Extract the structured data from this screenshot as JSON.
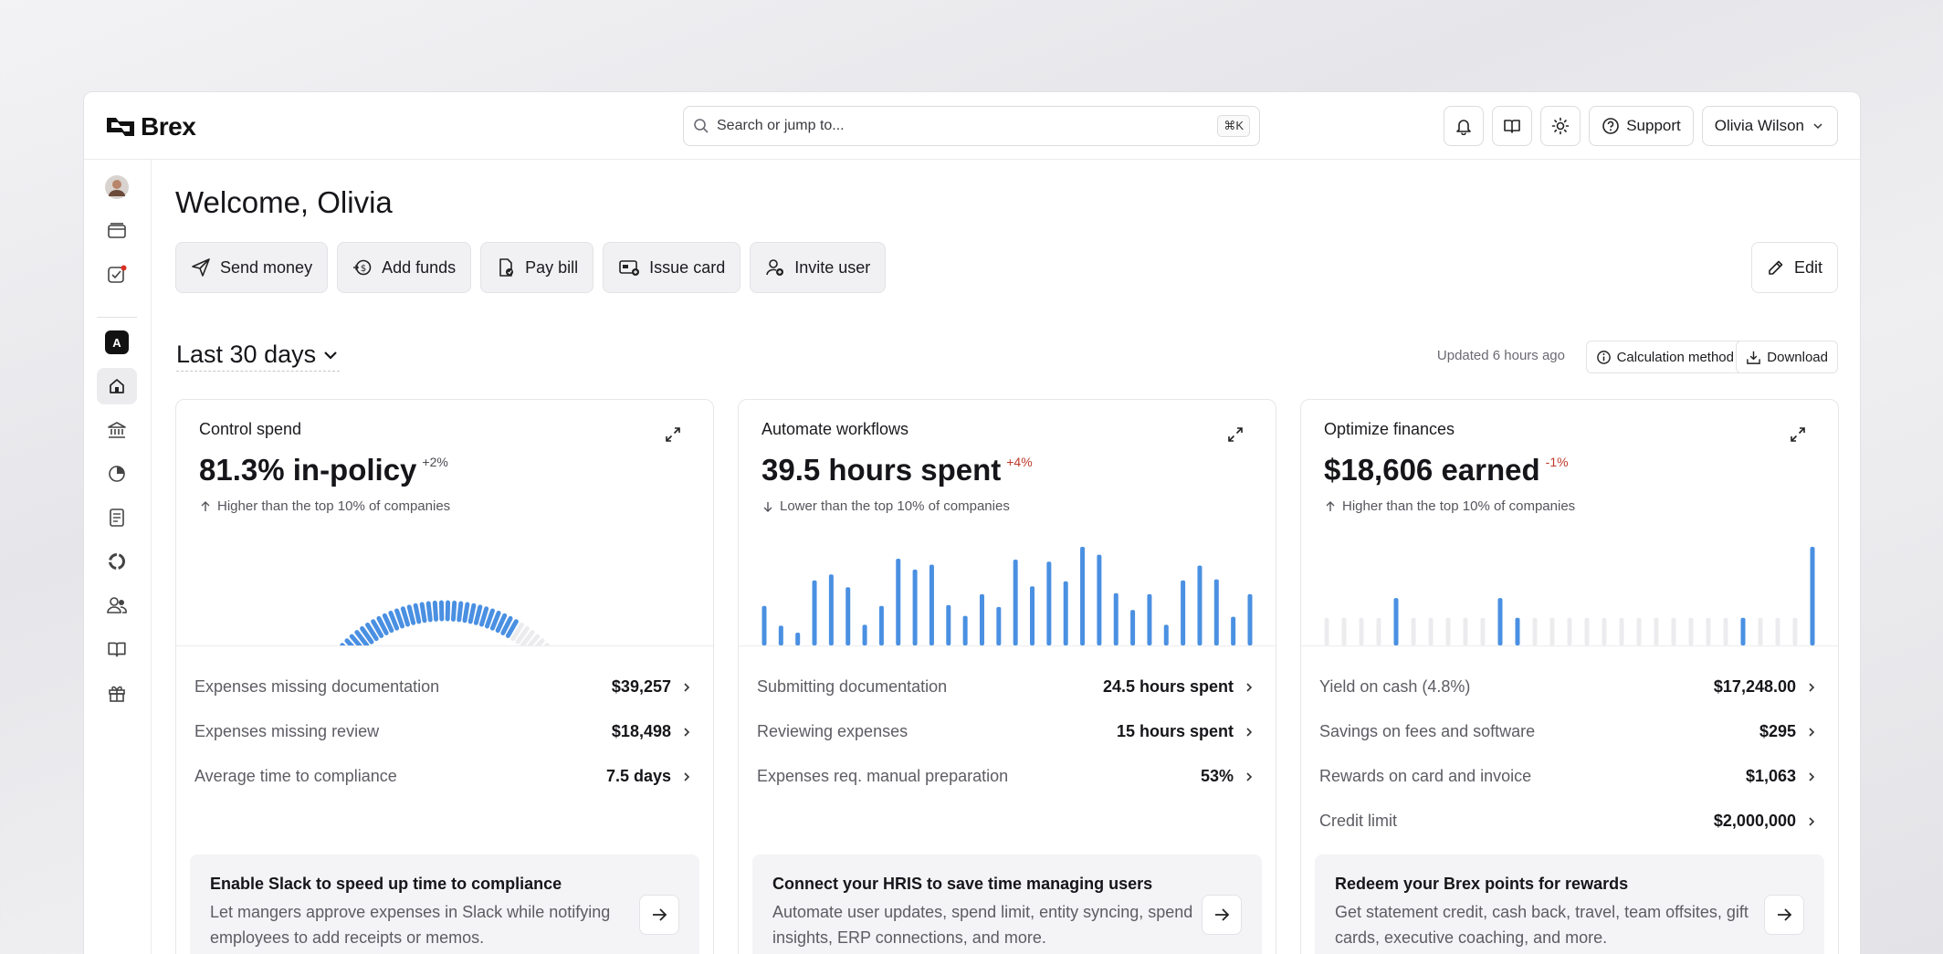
{
  "header": {
    "logo_text": "Brex",
    "search_placeholder": "Search or jump to...",
    "search_shortcut": "⌘K",
    "support_label": "Support",
    "user_name": "Olivia Wilson"
  },
  "sidebar": {
    "workspace_badge": "A",
    "items": [
      "avatar",
      "cards-icon",
      "tasks-icon",
      "workspace-icon",
      "home-icon",
      "bank-icon",
      "budget-icon",
      "bill-icon",
      "integrations-icon",
      "team-icon",
      "book-icon",
      "gift-icon"
    ]
  },
  "main": {
    "welcome": "Welcome, Olivia",
    "actions": [
      "Send money",
      "Add funds",
      "Pay bill",
      "Issue card",
      "Invite user"
    ],
    "edit_label": "Edit",
    "period": "Last 30 days",
    "updated": "Updated 6 hours ago",
    "calc_label": "Calculation method",
    "download_label": "Download"
  },
  "cards": [
    {
      "title": "Control spend",
      "metric": "81.3% in-policy",
      "delta": "+2%",
      "delta_color": "#4a4a52",
      "compare": "Higher than the top 10% of companies",
      "direction": "up",
      "rows": [
        {
          "label": "Expenses missing documentation",
          "value": "$39,257"
        },
        {
          "label": "Expenses missing review",
          "value": "$18,498"
        },
        {
          "label": "Average time to compliance",
          "value": "7.5 days"
        }
      ],
      "promo_title": "Enable Slack to speed up time to compliance",
      "promo_text": "Let mangers approve expenses in Slack while notifying employees to add receipts or memos."
    },
    {
      "title": "Automate workflows",
      "metric": "39.5 hours spent",
      "delta": "+4%",
      "delta_color": "#c0392b",
      "compare": "Lower than the top 10% of companies",
      "direction": "down",
      "rows": [
        {
          "label": "Submitting documentation",
          "value": "24.5 hours spent"
        },
        {
          "label": "Reviewing expenses",
          "value": "15 hours spent"
        },
        {
          "label": "Expenses req. manual preparation",
          "value": "53%"
        }
      ],
      "promo_title": "Connect your HRIS to save time managing users",
      "promo_text": "Automate user updates, spend limit, entity syncing, spend insights, ERP connections, and more."
    },
    {
      "title": "Optimize finances",
      "metric": "$18,606 earned",
      "delta": "-1%",
      "delta_color": "#c0392b",
      "compare": "Higher than the top 10% of companies",
      "direction": "up",
      "rows": [
        {
          "label": "Yield on cash (4.8%)",
          "value": "$17,248.00"
        },
        {
          "label": "Savings on fees and software",
          "value": "$295"
        },
        {
          "label": "Rewards on card and invoice",
          "value": "$1,063"
        },
        {
          "label": "Credit limit",
          "value": "$2,000,000"
        }
      ],
      "promo_title": "Redeem your Brex points for rewards",
      "promo_text": "Get statement credit, cash back, travel, team offsites, gift cards, executive coaching, and more."
    }
  ],
  "charts": {
    "accent": "#4a90e2",
    "muted": "#ececef",
    "gauge_fraction": 0.813,
    "workflow_bars": [
      0.4,
      0.2,
      0.13,
      0.66,
      0.72,
      0.59,
      0.21,
      0.4,
      0.88,
      0.77,
      0.82,
      0.41,
      0.3,
      0.52,
      0.39,
      0.87,
      0.6,
      0.85,
      0.65,
      1.0,
      0.92,
      0.53,
      0.36,
      0.52,
      0.21,
      0.66,
      0.81,
      0.67,
      0.29,
      0.52
    ],
    "finance_bars": [
      0.28,
      0.28,
      0.28,
      0.28,
      0.48,
      0.28,
      0.28,
      0.28,
      0.28,
      0.28,
      0.48,
      0.28,
      0.28,
      0.28,
      0.28,
      0.28,
      0.28,
      0.28,
      0.28,
      0.28,
      0.28,
      0.28,
      0.28,
      0.28,
      0.28,
      0.28,
      0.28,
      0.28,
      1.0
    ],
    "finance_highlight": [
      4,
      10,
      11,
      24,
      28
    ]
  }
}
